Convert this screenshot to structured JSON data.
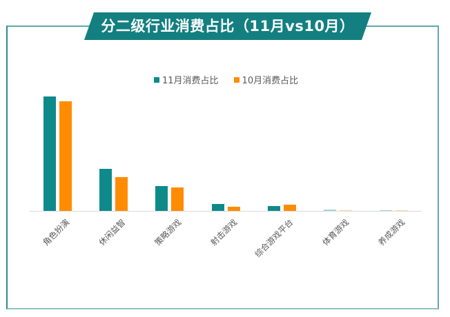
{
  "title": "分二级行业消费占比（11月vs10月）",
  "colors": {
    "banner": "#137f80",
    "series_11": "#0e8a8b",
    "series_10": "#ff8c00",
    "frame": "#5fa8aa",
    "axis": "#d9d9d9",
    "label": "#595959"
  },
  "legend": [
    {
      "label": "11月消费占比",
      "color": "#0e8a8b"
    },
    {
      "label": "10月消费占比",
      "color": "#ff8c00"
    }
  ],
  "chart_data": {
    "type": "bar",
    "title": "分二级行业消费占比（11月vs10月）",
    "xlabel": "",
    "ylabel": "",
    "categories": [
      "角色扮演",
      "休闲益智",
      "策略游戏",
      "射击游戏",
      "综合游戏平台",
      "体育游戏",
      "养成游戏"
    ],
    "series": [
      {
        "name": "11月消费占比",
        "color": "#0e8a8b",
        "values": [
          28.0,
          10.3,
          6.1,
          1.7,
          1.2,
          0.3,
          0.2
        ]
      },
      {
        "name": "10月消费占比",
        "color": "#ff8c00",
        "values": [
          26.8,
          8.3,
          5.7,
          1.0,
          1.5,
          0.2,
          0.2
        ]
      }
    ],
    "ylim": [
      0,
      31
    ],
    "grid": false,
    "y_axis_visible": false,
    "legend_position": "top",
    "value_unit": "% (estimated, axis not shown)"
  }
}
